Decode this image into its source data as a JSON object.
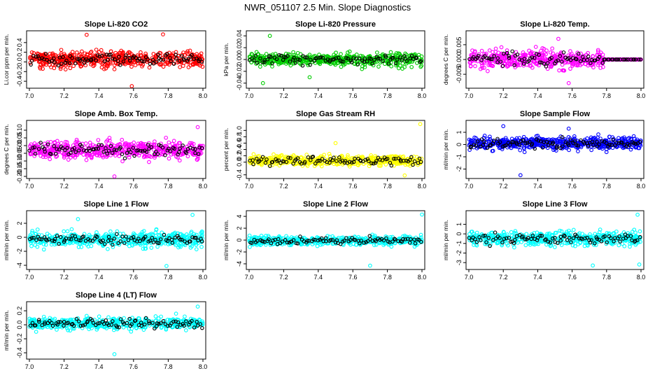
{
  "page_title": "NWR_051107  2.5 Min. Slope Diagnostics",
  "colors": {
    "red": "#ff0000",
    "green": "#00cc00",
    "magenta": "#ff00ff",
    "yellow": "#ffff00",
    "blue": "#0000ff",
    "cyan": "#00ffff",
    "black": "#000000"
  },
  "chart_data": [
    {
      "type": "scatter",
      "title": "Slope Li-820 CO2",
      "ylabel": "Li.cor ppm per min.",
      "color_key": "red",
      "xlim": [
        7.0,
        8.0
      ],
      "ylim": [
        -0.5,
        0.6
      ],
      "xticks": [
        "7.0",
        "7.2",
        "7.4",
        "7.6",
        "7.8",
        "8.0"
      ],
      "yticks": [
        "-0.4",
        "-0.2",
        "0.0",
        "0.2",
        "0.4"
      ],
      "ytick_values": [
        -0.4,
        -0.2,
        0.0,
        0.2,
        0.4
      ],
      "n_points": 500,
      "center": 0.05,
      "spread": 0.16,
      "hi_n": 90,
      "outliers": [
        [
          7.33,
          0.56
        ],
        [
          7.77,
          0.57
        ],
        [
          7.59,
          -0.5
        ]
      ]
    },
    {
      "type": "scatter",
      "title": "Slope Li-820 Pressure",
      "ylabel": "kPa per min.",
      "color_key": "green",
      "xlim": [
        7.0,
        8.0
      ],
      "ylim": [
        -0.045,
        0.045
      ],
      "xticks": [
        "7.0",
        "7.2",
        "7.4",
        "7.6",
        "7.8",
        "8.0"
      ],
      "yticks": [
        "-0.04",
        "-0.02",
        "0.00",
        "0.02",
        "0.04"
      ],
      "ytick_values": [
        -0.04,
        -0.02,
        0.0,
        0.02,
        0.04
      ],
      "n_points": 500,
      "center": 0.0,
      "spread": 0.01,
      "hi_n": 90,
      "outliers": [
        [
          7.12,
          0.04
        ],
        [
          7.08,
          -0.04
        ],
        [
          7.35,
          -0.03
        ]
      ]
    },
    {
      "type": "scatter",
      "title": "Slope Li-820 Temp.",
      "ylabel": "degrees C per min.",
      "color_key": "magenta",
      "xlim": [
        7.0,
        8.0
      ],
      "ylim": [
        -0.009,
        0.009
      ],
      "xticks": [
        "7.0",
        "7.2",
        "7.4",
        "7.6",
        "7.8",
        "8.0"
      ],
      "yticks": [
        "-0.005",
        "0.000",
        "0.005"
      ],
      "ytick_values": [
        -0.005,
        0.0,
        0.005
      ],
      "n_points": 500,
      "center": 0.0,
      "spread": 0.003,
      "hi_n": 90,
      "flat_after": 7.78,
      "outliers": [
        [
          7.58,
          -0.008
        ],
        [
          7.52,
          0.007
        ]
      ]
    },
    {
      "type": "scatter",
      "title": "Slope Amb. Box Temp.",
      "ylabel": "degrees C per min.",
      "color_key": "magenta",
      "xlim": [
        7.0,
        8.0
      ],
      "ylim": [
        -0.2,
        0.15
      ],
      "xticks": [
        "7.0",
        "7.2",
        "7.4",
        "7.6",
        "7.8",
        "8.0"
      ],
      "yticks": [
        "-0.20",
        "-0.15",
        "-0.10",
        "-0.05",
        "0.00",
        "0.05",
        "0.10"
      ],
      "ytick_values": [
        -0.2,
        -0.15,
        -0.1,
        -0.05,
        0.0,
        0.05,
        0.1
      ],
      "n_points": 500,
      "center": -0.03,
      "spread": 0.055,
      "hi_n": 90,
      "outliers": [
        [
          7.49,
          -0.2
        ],
        [
          7.97,
          0.12
        ]
      ]
    },
    {
      "type": "scatter",
      "title": "Slope Gas Stream RH",
      "ylabel": "percent per min.",
      "color_key": "yellow",
      "xlim": [
        7.0,
        8.0
      ],
      "ylim": [
        -0.45,
        1.25
      ],
      "xticks": [
        "7.0",
        "7.2",
        "7.4",
        "7.6",
        "7.8",
        "8.0"
      ],
      "yticks": [
        "-0.4",
        "0.0",
        "0.2",
        "0.4",
        "0.6",
        "0.8",
        "1.0"
      ],
      "ytick_values": [
        -0.4,
        0.0,
        0.2,
        0.4,
        0.6,
        0.8,
        1.0
      ],
      "n_points": 500,
      "center": 0.05,
      "spread": 0.15,
      "hi_n": 90,
      "outliers": [
        [
          7.99,
          1.2
        ],
        [
          7.9,
          -0.42
        ],
        [
          7.5,
          0.6
        ]
      ]
    },
    {
      "type": "scatter",
      "title": "Slope Sample Flow",
      "ylabel": "ml/min per min.",
      "color_key": "blue",
      "xlim": [
        7.0,
        8.0
      ],
      "ylim": [
        -2.6,
        1.8
      ],
      "xticks": [
        "7.0",
        "7.2",
        "7.4",
        "7.6",
        "7.8",
        "8.0"
      ],
      "yticks": [
        "-2",
        "-1",
        "0",
        "1"
      ],
      "ytick_values": [
        -2,
        -1,
        0,
        1
      ],
      "n_points": 500,
      "center": 0.1,
      "spread": 0.5,
      "hi_n": 90,
      "outliers": [
        [
          7.3,
          -2.5
        ],
        [
          7.2,
          1.5
        ],
        [
          7.58,
          1.3
        ]
      ]
    },
    {
      "type": "scatter",
      "title": "Slope Line 1 Flow",
      "ylabel": "ml/min per min.",
      "color_key": "cyan",
      "xlim": [
        7.0,
        8.0
      ],
      "ylim": [
        -4.3,
        3.5
      ],
      "xticks": [
        "7.0",
        "7.2",
        "7.4",
        "7.6",
        "7.8",
        "8.0"
      ],
      "yticks": [
        "-4",
        "-2",
        "0",
        "2"
      ],
      "ytick_values": [
        -4,
        -2,
        0,
        2
      ],
      "n_points": 500,
      "center": -0.3,
      "spread": 1.0,
      "hi_n": 90,
      "outliers": [
        [
          7.79,
          -4.1
        ],
        [
          7.94,
          3.2
        ],
        [
          7.28,
          2.6
        ]
      ]
    },
    {
      "type": "scatter",
      "title": "Slope Line 2 Flow",
      "ylabel": "ml/min per min.",
      "color_key": "cyan",
      "xlim": [
        7.0,
        8.0
      ],
      "ylim": [
        -4.6,
        4.6
      ],
      "xticks": [
        "7.0",
        "7.2",
        "7.4",
        "7.6",
        "7.8",
        "8.0"
      ],
      "yticks": [
        "-4",
        "-2",
        "0",
        "2",
        "4"
      ],
      "ytick_values": [
        -4,
        -2,
        0,
        2,
        4
      ],
      "n_points": 500,
      "center": -0.1,
      "spread": 0.7,
      "hi_n": 90,
      "outliers": [
        [
          7.7,
          -4.3
        ],
        [
          8.0,
          4.3
        ]
      ]
    },
    {
      "type": "scatter",
      "title": "Slope Line 3 Flow",
      "ylabel": "ml/min per min.",
      "color_key": "cyan",
      "xlim": [
        7.0,
        8.0
      ],
      "ylim": [
        -3.5,
        2.2
      ],
      "xticks": [
        "7.0",
        "7.2",
        "7.4",
        "7.6",
        "7.8",
        "8.0"
      ],
      "yticks": [
        "-3",
        "-2",
        "-1",
        "0",
        "1"
      ],
      "ytick_values": [
        -3,
        -2,
        -1,
        0,
        1
      ],
      "n_points": 500,
      "center": -0.5,
      "spread": 0.7,
      "hi_n": 90,
      "outliers": [
        [
          7.72,
          -3.3
        ],
        [
          7.99,
          -3.2
        ],
        [
          7.98,
          2.0
        ]
      ]
    },
    {
      "type": "scatter",
      "title": "Slope Line 4 (LT) Flow",
      "ylabel": "ml/min per min.",
      "color_key": "cyan",
      "xlim": [
        7.0,
        8.0
      ],
      "ylim": [
        -0.46,
        0.3
      ],
      "xticks": [
        "7.0",
        "7.2",
        "7.4",
        "7.6",
        "7.8",
        "8.0"
      ],
      "yticks": [
        "-0.4",
        "-0.2",
        "0.0",
        "0.2"
      ],
      "ytick_values": [
        -0.4,
        -0.2,
        0.0,
        0.2
      ],
      "n_points": 500,
      "center": 0.02,
      "spread": 0.08,
      "hi_n": 90,
      "outliers": [
        [
          7.49,
          -0.42
        ],
        [
          7.97,
          0.26
        ]
      ]
    }
  ]
}
